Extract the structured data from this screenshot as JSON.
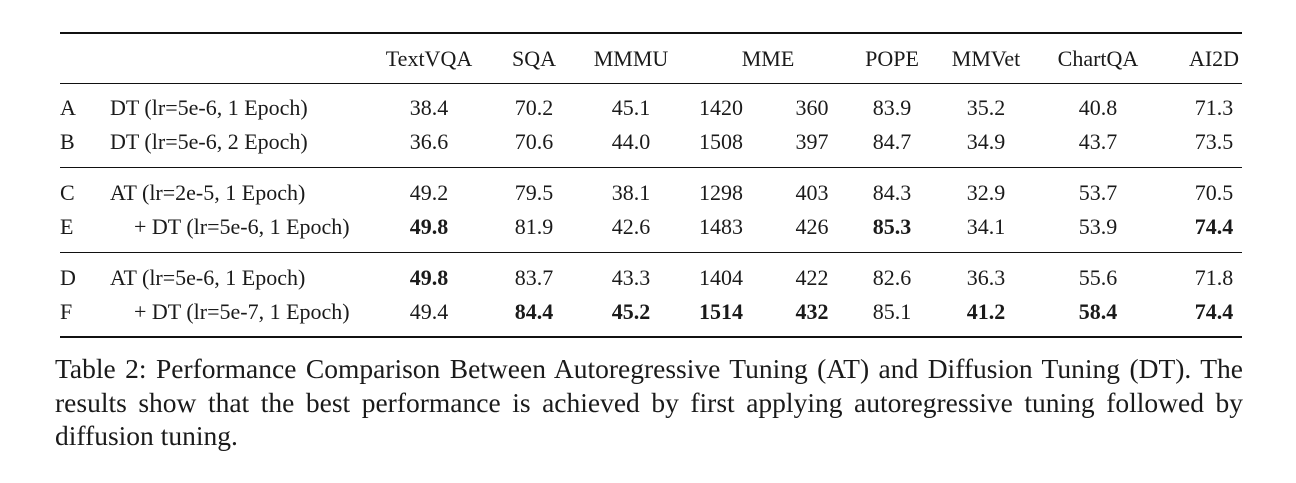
{
  "table": {
    "headers": [
      "TextVQA",
      "SQA",
      "MMMU",
      "MME",
      "POPE",
      "MMVet",
      "ChartQA",
      "AI2D"
    ],
    "groups": [
      [
        {
          "id": "A",
          "config": "DT (lr=5e-6, 1 Epoch)",
          "indent": false,
          "values": [
            "38.4",
            "70.2",
            "45.1",
            "1420",
            "360",
            "83.9",
            "35.2",
            "40.8",
            "71.3"
          ],
          "bold": [
            false,
            false,
            false,
            false,
            false,
            false,
            false,
            false,
            false
          ]
        },
        {
          "id": "B",
          "config": "DT (lr=5e-6, 2 Epoch)",
          "indent": false,
          "values": [
            "36.6",
            "70.6",
            "44.0",
            "1508",
            "397",
            "84.7",
            "34.9",
            "43.7",
            "73.5"
          ],
          "bold": [
            false,
            false,
            false,
            false,
            false,
            false,
            false,
            false,
            false
          ]
        }
      ],
      [
        {
          "id": "C",
          "config": "AT (lr=2e-5, 1 Epoch)",
          "indent": false,
          "values": [
            "49.2",
            "79.5",
            "38.1",
            "1298",
            "403",
            "84.3",
            "32.9",
            "53.7",
            "70.5"
          ],
          "bold": [
            false,
            false,
            false,
            false,
            false,
            false,
            false,
            false,
            false
          ]
        },
        {
          "id": "E",
          "config": "+ DT (lr=5e-6, 1 Epoch)",
          "indent": true,
          "values": [
            "49.8",
            "81.9",
            "42.6",
            "1483",
            "426",
            "85.3",
            "34.1",
            "53.9",
            "74.4"
          ],
          "bold": [
            true,
            false,
            false,
            false,
            false,
            true,
            false,
            false,
            true
          ]
        }
      ],
      [
        {
          "id": "D",
          "config": "AT (lr=5e-6, 1 Epoch)",
          "indent": false,
          "values": [
            "49.8",
            "83.7",
            "43.3",
            "1404",
            "422",
            "82.6",
            "36.3",
            "55.6",
            "71.8"
          ],
          "bold": [
            true,
            false,
            false,
            false,
            false,
            false,
            false,
            false,
            false
          ]
        },
        {
          "id": "F",
          "config": "+ DT (lr=5e-7, 1 Epoch)",
          "indent": true,
          "values": [
            "49.4",
            "84.4",
            "45.2",
            "1514",
            "432",
            "85.1",
            "41.2",
            "58.4",
            "74.4"
          ],
          "bold": [
            false,
            true,
            true,
            true,
            true,
            false,
            true,
            true,
            true
          ]
        }
      ]
    ]
  },
  "caption": "Table 2: Performance Comparison Between Autoregressive Tuning (AT) and Diffusion Tuning (DT). The results show that the best performance is achieved by first applying autoregressive tuning followed by diffusion tuning."
}
